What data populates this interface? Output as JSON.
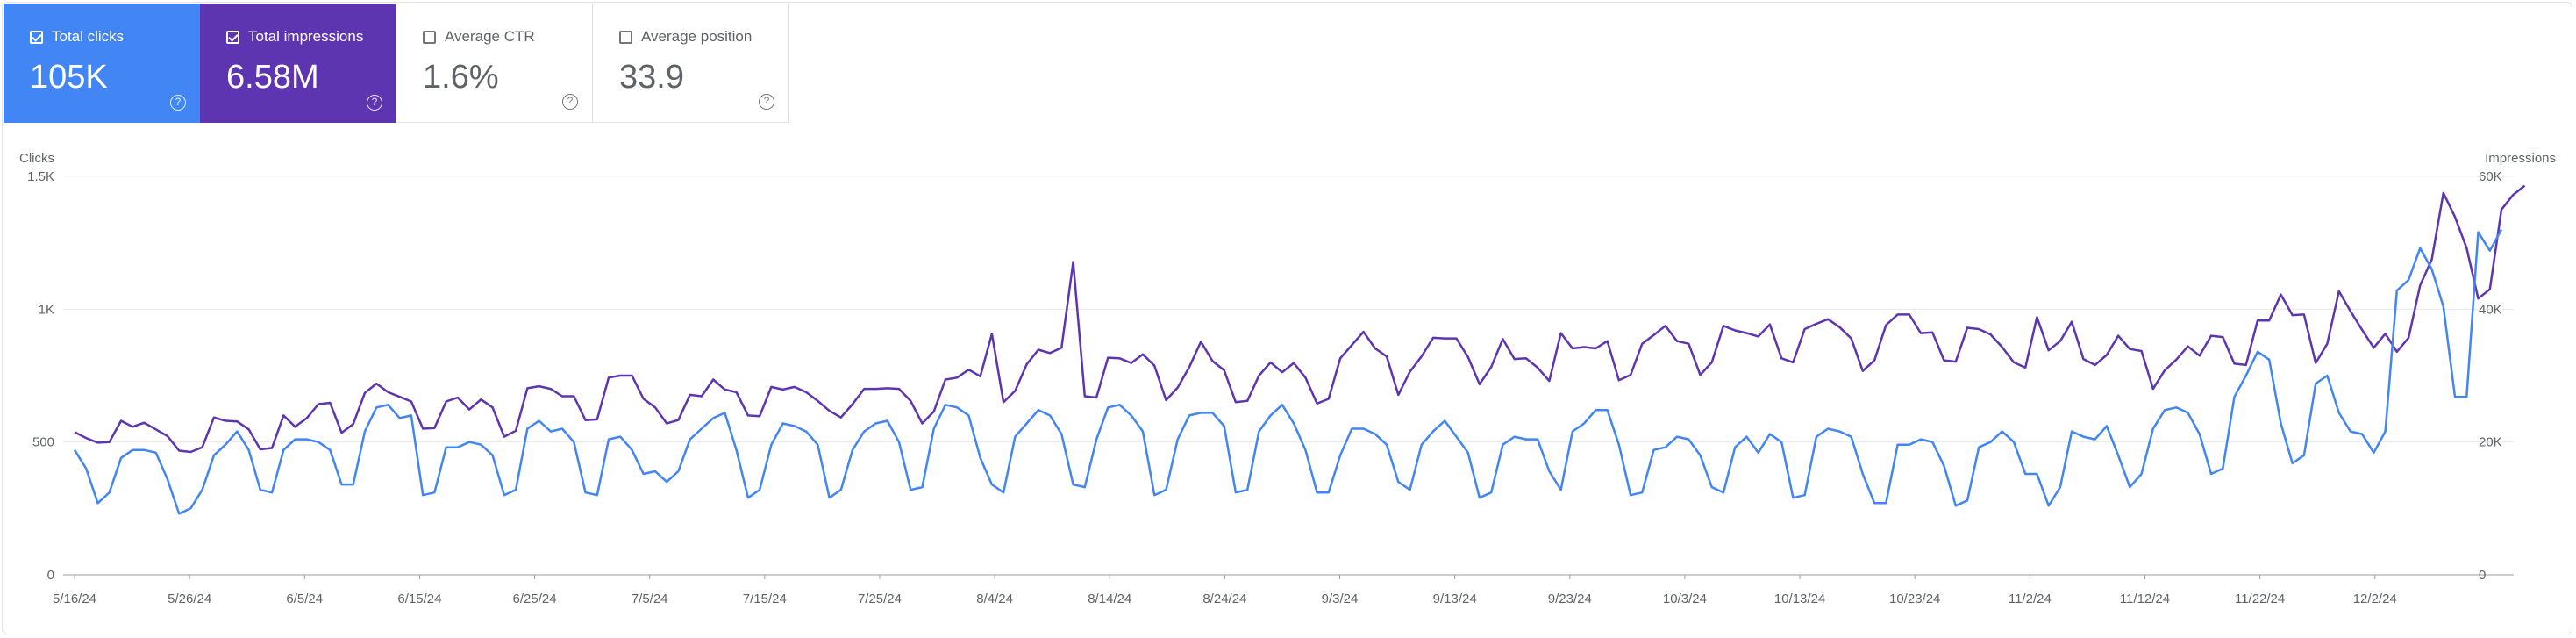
{
  "cards": [
    {
      "label": "Total clicks",
      "value": "105K",
      "checked": true,
      "color": "#4285f4"
    },
    {
      "label": "Total impressions",
      "value": "6.58M",
      "checked": true,
      "color": "#5e35b1"
    },
    {
      "label": "Average CTR",
      "value": "1.6%",
      "checked": false,
      "color": "#ffffff"
    },
    {
      "label": "Average position",
      "value": "33.9",
      "checked": false,
      "color": "#ffffff"
    }
  ],
  "help_glyph": "?",
  "chart_data": {
    "type": "line",
    "left_axis_label": "Clicks",
    "right_axis_label": "Impressions",
    "left_ticks": [
      {
        "value": 0,
        "label": "0"
      },
      {
        "value": 500,
        "label": "500"
      },
      {
        "value": 1000,
        "label": "1K"
      },
      {
        "value": 1500,
        "label": "1.5K"
      }
    ],
    "right_ticks": [
      {
        "value": 0,
        "label": "0"
      },
      {
        "value": 20000,
        "label": "20K"
      },
      {
        "value": 40000,
        "label": "40K"
      },
      {
        "value": 60000,
        "label": "60K"
      }
    ],
    "ylim_left": [
      0,
      1500
    ],
    "ylim_right": [
      0,
      60000
    ],
    "x_start": "5/16/24",
    "x_end": "12/13/24",
    "x_ticks": [
      "5/16/24",
      "5/26/24",
      "6/5/24",
      "6/15/24",
      "6/25/24",
      "7/5/24",
      "7/15/24",
      "7/25/24",
      "8/4/24",
      "8/14/24",
      "8/24/24",
      "9/3/24",
      "9/13/24",
      "9/23/24",
      "10/3/24",
      "10/13/24",
      "10/23/24",
      "11/2/24",
      "11/12/24",
      "11/22/24",
      "12/2/24"
    ],
    "series": [
      {
        "name": "Clicks",
        "axis": "left",
        "color": "#4285f4",
        "values": [
          470,
          400,
          270,
          310,
          440,
          470,
          470,
          460,
          360,
          230,
          250,
          320,
          450,
          490,
          540,
          470,
          320,
          310,
          470,
          510,
          510,
          500,
          470,
          340,
          340,
          540,
          630,
          640,
          590,
          600,
          300,
          310,
          480,
          480,
          500,
          490,
          450,
          300,
          320,
          550,
          580,
          540,
          550,
          500,
          310,
          300,
          510,
          520,
          470,
          380,
          390,
          350,
          390,
          510,
          550,
          590,
          610,
          470,
          290,
          320,
          490,
          570,
          560,
          540,
          490,
          290,
          320,
          470,
          540,
          570,
          580,
          500,
          320,
          330,
          550,
          640,
          630,
          600,
          440,
          340,
          310,
          520,
          570,
          620,
          600,
          530,
          340,
          330,
          510,
          630,
          640,
          600,
          540,
          300,
          320,
          510,
          600,
          610,
          610,
          560,
          310,
          320,
          540,
          600,
          640,
          570,
          470,
          310,
          310,
          450,
          550,
          550,
          530,
          490,
          350,
          320,
          490,
          540,
          580,
          520,
          460,
          290,
          310,
          490,
          520,
          510,
          510,
          390,
          320,
          540,
          570,
          620,
          620,
          490,
          300,
          310,
          470,
          480,
          520,
          510,
          450,
          330,
          310,
          480,
          520,
          460,
          530,
          500,
          290,
          300,
          520,
          550,
          540,
          520,
          380,
          270,
          270,
          490,
          490,
          510,
          500,
          410,
          260,
          280,
          480,
          500,
          540,
          500,
          380,
          380,
          260,
          330,
          540,
          520,
          510,
          560,
          450,
          330,
          380,
          550,
          620,
          630,
          610,
          530,
          380,
          400,
          670,
          750,
          840,
          810,
          570,
          420,
          450,
          720,
          750,
          610,
          540,
          530,
          460,
          540,
          1070,
          1110,
          1230,
          1150,
          1010,
          670,
          670,
          1290,
          1220,
          1300
        ]
      },
      {
        "name": "Impressions",
        "axis": "right",
        "color": "#5e35b1",
        "values": [
          21500,
          20600,
          19900,
          20000,
          23200,
          22300,
          22900,
          21900,
          20900,
          18700,
          18500,
          19200,
          23700,
          23200,
          23100,
          21900,
          18900,
          19100,
          24000,
          22300,
          23600,
          25700,
          25900,
          21400,
          22700,
          27400,
          28800,
          27500,
          26800,
          26100,
          22000,
          22100,
          26100,
          26700,
          24900,
          26400,
          25200,
          20800,
          21700,
          28100,
          28400,
          28000,
          26900,
          26900,
          23300,
          23400,
          29700,
          30000,
          30000,
          26500,
          25200,
          22800,
          23300,
          27100,
          26900,
          29400,
          27900,
          27500,
          24000,
          23900,
          28300,
          27900,
          28300,
          27500,
          26200,
          24700,
          23700,
          25700,
          28000,
          28000,
          28100,
          28000,
          26200,
          22800,
          24600,
          29400,
          29700,
          30900,
          29900,
          36300,
          26000,
          27700,
          31700,
          33900,
          33400,
          34200,
          47100,
          26900,
          26700,
          32700,
          32600,
          31900,
          33200,
          31500,
          26300,
          28200,
          31300,
          35100,
          32200,
          30800,
          26000,
          26200,
          30000,
          32000,
          30500,
          31900,
          29700,
          25800,
          26500,
          32600,
          34600,
          36600,
          34100,
          32900,
          27100,
          30600,
          32900,
          35700,
          35600,
          35600,
          32800,
          28700,
          31300,
          35500,
          32500,
          32600,
          31200,
          29200,
          36400,
          34100,
          34300,
          34100,
          35200,
          29300,
          30100,
          34800,
          36100,
          37500,
          35200,
          34800,
          30100,
          32000,
          37500,
          36800,
          36400,
          35900,
          37700,
          32600,
          32000,
          37000,
          37800,
          38500,
          37300,
          35600,
          30700,
          32300,
          37600,
          39200,
          39200,
          36400,
          36500,
          32300,
          32100,
          37200,
          37000,
          36200,
          34300,
          32000,
          31200,
          38800,
          33800,
          35200,
          38100,
          32500,
          31600,
          33100,
          36000,
          34000,
          33700,
          28000,
          30800,
          32400,
          34400,
          33000,
          36000,
          35800,
          31800,
          31600,
          38300,
          38300,
          42200,
          39100,
          39200,
          31900,
          34800,
          42700,
          39700,
          36900,
          34200,
          36300,
          33600,
          35700,
          43600,
          47500,
          57500,
          53900,
          49200,
          41600,
          43000,
          55000,
          57200,
          58600
        ]
      }
    ]
  }
}
